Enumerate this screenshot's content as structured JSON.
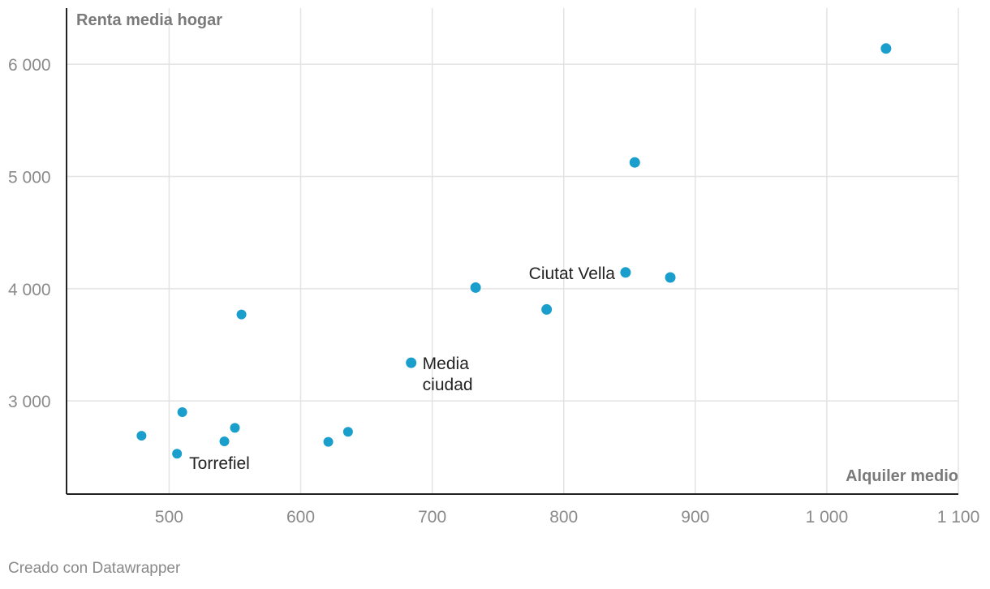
{
  "chart_data": {
    "type": "scatter",
    "title": "",
    "xlabel": "Alquiler medio",
    "ylabel": "Renta media hogar",
    "xlim": [
      422,
      1100
    ],
    "ylim": [
      2170,
      6500
    ],
    "x_ticks": [
      500,
      600,
      700,
      800,
      900,
      1000,
      1100
    ],
    "x_tick_labels": [
      "500",
      "600",
      "700",
      "800",
      "900",
      "1 000",
      "1 100"
    ],
    "y_ticks": [
      3000,
      4000,
      5000,
      6000
    ],
    "y_tick_labels": [
      "3 000",
      "4 000",
      "5 000",
      "6 000"
    ],
    "grid": true,
    "point_color": "#1a9fcc",
    "points": [
      {
        "x": 1045,
        "y": 6140,
        "label": "",
        "r": 7
      },
      {
        "x": 854,
        "y": 5125,
        "label": "",
        "r": 7
      },
      {
        "x": 847,
        "y": 4145,
        "label": "Ciutat Vella",
        "r": 7,
        "label_pos": "left"
      },
      {
        "x": 881,
        "y": 4100,
        "label": "",
        "r": 7
      },
      {
        "x": 733,
        "y": 4010,
        "label": "",
        "r": 7
      },
      {
        "x": 787,
        "y": 3815,
        "label": "",
        "r": 7
      },
      {
        "x": 555,
        "y": 3770,
        "label": "",
        "r": 6.5
      },
      {
        "x": 684,
        "y": 3340,
        "label": "Media ciudad",
        "r": 7,
        "label_pos": "right",
        "label_lines": [
          "Media",
          "ciudad"
        ]
      },
      {
        "x": 510,
        "y": 2900,
        "label": "",
        "r": 6.5
      },
      {
        "x": 479,
        "y": 2690,
        "label": "",
        "r": 6.5
      },
      {
        "x": 550,
        "y": 2760,
        "label": "",
        "r": 6.5
      },
      {
        "x": 542,
        "y": 2640,
        "label": "",
        "r": 6.5
      },
      {
        "x": 506,
        "y": 2530,
        "label": "Torrefiel",
        "r": 6.5,
        "label_pos": "below-right"
      },
      {
        "x": 621,
        "y": 2635,
        "label": "",
        "r": 6.5
      },
      {
        "x": 636,
        "y": 2725,
        "label": "",
        "r": 6.5
      }
    ]
  },
  "footer": {
    "credit": "Creado con Datawrapper"
  }
}
